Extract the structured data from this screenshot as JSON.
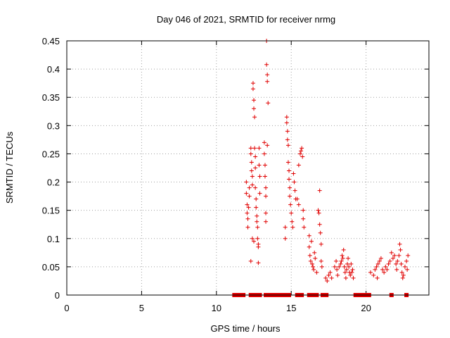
{
  "chart_data": {
    "type": "scatter",
    "title": "Day 046 of 2021, SRMTID for receiver nrmg",
    "xlabel": "GPS time / hours",
    "ylabel": "SRMTID / TECUs",
    "xlim": [
      0,
      24.2
    ],
    "ylim": [
      0,
      0.45
    ],
    "grid": true,
    "x_ticks": [
      0,
      5,
      10,
      15,
      20
    ],
    "x_tick_labels": [
      "0",
      "5",
      "10",
      "15",
      "20"
    ],
    "y_ticks": [
      0,
      0.05,
      0.1,
      0.15,
      0.2,
      0.25,
      0.3,
      0.35,
      0.4,
      0.45
    ],
    "y_tick_labels": [
      "0",
      "0.05",
      "0.1",
      "0.15",
      "0.2",
      "0.25",
      "0.3",
      "0.35",
      "0.4",
      "0.45"
    ],
    "series": [
      {
        "name": "SRMTID",
        "marker": "plus",
        "color": "#e00000",
        "points": [
          [
            12.0,
            0.2
          ],
          [
            12.0,
            0.18
          ],
          [
            12.05,
            0.16
          ],
          [
            12.05,
            0.145
          ],
          [
            12.1,
            0.135
          ],
          [
            12.1,
            0.12
          ],
          [
            12.15,
            0.155
          ],
          [
            12.2,
            0.19
          ],
          [
            12.2,
            0.175
          ],
          [
            12.3,
            0.26
          ],
          [
            12.3,
            0.25
          ],
          [
            12.35,
            0.235
          ],
          [
            12.35,
            0.22
          ],
          [
            12.4,
            0.21
          ],
          [
            12.4,
            0.195
          ],
          [
            12.45,
            0.375
          ],
          [
            12.45,
            0.365
          ],
          [
            12.5,
            0.345
          ],
          [
            12.5,
            0.33
          ],
          [
            12.55,
            0.315
          ],
          [
            12.55,
            0.26
          ],
          [
            12.6,
            0.245
          ],
          [
            12.6,
            0.225
          ],
          [
            12.6,
            0.19
          ],
          [
            12.65,
            0.17
          ],
          [
            12.65,
            0.155
          ],
          [
            12.7,
            0.14
          ],
          [
            12.7,
            0.13
          ],
          [
            12.75,
            0.12
          ],
          [
            12.75,
            0.1
          ],
          [
            12.8,
            0.09
          ],
          [
            12.8,
            0.085
          ],
          [
            12.85,
            0.26
          ],
          [
            12.85,
            0.23
          ],
          [
            12.9,
            0.21
          ],
          [
            12.9,
            0.18
          ],
          [
            12.3,
            0.06
          ],
          [
            12.4,
            0.1
          ],
          [
            12.5,
            0.095
          ],
          [
            12.8,
            0.057
          ],
          [
            13.2,
            0.27
          ],
          [
            13.2,
            0.25
          ],
          [
            13.25,
            0.23
          ],
          [
            13.25,
            0.21
          ],
          [
            13.3,
            0.19
          ],
          [
            13.3,
            0.175
          ],
          [
            13.35,
            0.45
          ],
          [
            13.35,
            0.408
          ],
          [
            13.4,
            0.39
          ],
          [
            13.4,
            0.378
          ],
          [
            13.45,
            0.34
          ],
          [
            13.4,
            0.265
          ],
          [
            13.3,
            0.145
          ],
          [
            13.3,
            0.13
          ],
          [
            14.6,
            0.12
          ],
          [
            14.6,
            0.1
          ],
          [
            14.7,
            0.315
          ],
          [
            14.7,
            0.305
          ],
          [
            14.75,
            0.29
          ],
          [
            14.75,
            0.275
          ],
          [
            14.8,
            0.265
          ],
          [
            14.8,
            0.235
          ],
          [
            14.85,
            0.22
          ],
          [
            14.85,
            0.205
          ],
          [
            14.9,
            0.19
          ],
          [
            14.9,
            0.175
          ],
          [
            14.95,
            0.16
          ],
          [
            15.0,
            0.145
          ],
          [
            15.05,
            0.13
          ],
          [
            15.1,
            0.12
          ],
          [
            15.15,
            0.215
          ],
          [
            15.2,
            0.2
          ],
          [
            15.25,
            0.185
          ],
          [
            15.3,
            0.17
          ],
          [
            15.4,
            0.17
          ],
          [
            15.5,
            0.16
          ],
          [
            15.5,
            0.23
          ],
          [
            15.6,
            0.25
          ],
          [
            15.65,
            0.255
          ],
          [
            15.7,
            0.26
          ],
          [
            15.75,
            0.245
          ],
          [
            15.8,
            0.135
          ],
          [
            15.8,
            0.15
          ],
          [
            15.85,
            0.12
          ],
          [
            16.2,
            0.105
          ],
          [
            16.2,
            0.085
          ],
          [
            16.25,
            0.07
          ],
          [
            16.3,
            0.06
          ],
          [
            16.35,
            0.095
          ],
          [
            16.4,
            0.055
          ],
          [
            16.45,
            0.05
          ],
          [
            16.5,
            0.045
          ],
          [
            16.55,
            0.075
          ],
          [
            16.6,
            0.065
          ],
          [
            16.7,
            0.04
          ],
          [
            16.8,
            0.15
          ],
          [
            16.85,
            0.145
          ],
          [
            16.9,
            0.125
          ],
          [
            16.95,
            0.11
          ],
          [
            16.9,
            0.185
          ],
          [
            17.0,
            0.09
          ],
          [
            17.0,
            0.06
          ],
          [
            17.05,
            0.05
          ],
          [
            17.3,
            0.03
          ],
          [
            17.4,
            0.025
          ],
          [
            17.5,
            0.035
          ],
          [
            17.6,
            0.04
          ],
          [
            17.7,
            0.03
          ],
          [
            17.9,
            0.05
          ],
          [
            18.0,
            0.06
          ],
          [
            18.05,
            0.045
          ],
          [
            18.1,
            0.035
          ],
          [
            18.2,
            0.05
          ],
          [
            18.3,
            0.055
          ],
          [
            18.35,
            0.06
          ],
          [
            18.4,
            0.07
          ],
          [
            18.45,
            0.065
          ],
          [
            18.5,
            0.08
          ],
          [
            18.55,
            0.05
          ],
          [
            18.6,
            0.04
          ],
          [
            18.65,
            0.03
          ],
          [
            18.7,
            0.045
          ],
          [
            18.75,
            0.055
          ],
          [
            18.8,
            0.065
          ],
          [
            18.85,
            0.05
          ],
          [
            18.9,
            0.04
          ],
          [
            18.95,
            0.035
          ],
          [
            19.0,
            0.055
          ],
          [
            19.05,
            0.04
          ],
          [
            19.1,
            0.045
          ],
          [
            19.15,
            0.03
          ],
          [
            20.3,
            0.04
          ],
          [
            20.5,
            0.035
          ],
          [
            20.6,
            0.045
          ],
          [
            20.7,
            0.05
          ],
          [
            20.75,
            0.03
          ],
          [
            20.8,
            0.055
          ],
          [
            20.9,
            0.06
          ],
          [
            21.0,
            0.065
          ],
          [
            21.1,
            0.045
          ],
          [
            21.2,
            0.04
          ],
          [
            21.3,
            0.05
          ],
          [
            21.4,
            0.045
          ],
          [
            21.5,
            0.055
          ],
          [
            21.6,
            0.06
          ],
          [
            21.7,
            0.075
          ],
          [
            21.8,
            0.065
          ],
          [
            21.9,
            0.07
          ],
          [
            22.0,
            0.055
          ],
          [
            22.05,
            0.045
          ],
          [
            22.1,
            0.06
          ],
          [
            22.2,
            0.07
          ],
          [
            22.25,
            0.09
          ],
          [
            22.3,
            0.08
          ],
          [
            22.35,
            0.055
          ],
          [
            22.4,
            0.04
          ],
          [
            22.45,
            0.03
          ],
          [
            22.5,
            0.035
          ],
          [
            22.6,
            0.05
          ],
          [
            22.7,
            0.06
          ],
          [
            22.8,
            0.07
          ],
          [
            22.75,
            0.045
          ]
        ]
      }
    ],
    "zero_markers": {
      "marker": "square",
      "y": 0,
      "x": [
        11.2,
        11.35,
        11.5,
        11.65,
        11.8,
        12.3,
        12.5,
        12.65,
        12.8,
        12.9,
        13.3,
        13.5,
        13.65,
        13.8,
        13.95,
        14.1,
        14.25,
        14.4,
        14.55,
        14.7,
        14.85,
        15.4,
        15.55,
        15.7,
        16.2,
        16.45,
        16.7,
        17.1,
        17.25,
        17.35,
        19.3,
        19.45,
        19.6,
        19.75,
        19.9,
        20.05,
        20.2,
        21.7,
        22.7
      ]
    }
  }
}
